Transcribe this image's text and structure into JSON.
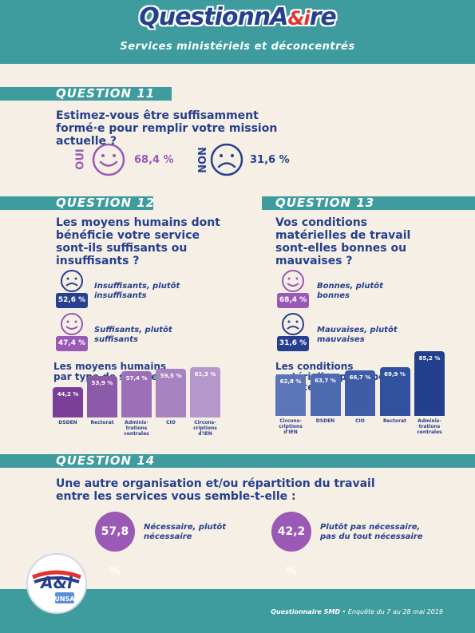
{
  "header": {
    "brand_main": "QuestionnA",
    "brand_amp": "&i",
    "brand_end": "re",
    "subtitle": "Services ministériels et déconcentrés"
  },
  "q11": {
    "label": "QUESTION 11",
    "title": "Estimez-vous être suffisamment formé·e pour remplir votre mission actuelle ?",
    "oui_label": "OUI",
    "oui_pct": "68,4 %",
    "non_label": "NON",
    "non_pct": "31,6 %"
  },
  "q12": {
    "label": "QUESTION 12",
    "title": "Les moyens humains dont bénéficie votre service sont-ils suffisants ou insuffisants ?",
    "a1_pct": "52,6 %",
    "a1_text": "Insuffisants, plutôt insuffisants",
    "a2_pct": "47,4 %",
    "a2_text": "Suffisants, plutôt suffisants",
    "sub_title": "Les moyens humains par type de service"
  },
  "q13": {
    "label": "QUESTION 13",
    "title": "Vos conditions matérielles de travail sont-elles bonnes ou mauvaises ?",
    "a1_pct": "68,4 %",
    "a1_text": "Bonnes, plutôt bonnes",
    "a2_pct": "31,6 %",
    "a2_text": "Mauvaises, plutôt mauvaises",
    "sub_title": "Les conditions matérielles par type de service"
  },
  "q14": {
    "label": "QUESTION 14",
    "title": "Une autre organisation et/ou répartition du travail entre les services vous semble-t-elle :",
    "a1_pct": "57,8 %",
    "a1_text": "Nécessaire, plutôt nécessaire",
    "a2_pct": "42,2 %",
    "a2_text": "Plutôt pas nécessaire, pas du tout nécessaire"
  },
  "footer": {
    "text_bold": "Questionnaire SMD",
    "text_rest": " • Enquête du 7 au 28 mai 2019",
    "logo_text": "A&i",
    "logo_sub": "UNSA"
  },
  "chart_data": [
    {
      "type": "bar",
      "categories": [
        "DSDEN",
        "Rectorat",
        "Adminis-trations centrales",
        "CIO",
        "Circons-criptions d'IEN"
      ],
      "values": [
        44.2,
        53.9,
        57.4,
        59.5,
        61.3
      ],
      "labels": [
        "44,2 %",
        "53,9 %",
        "57,4 %",
        "59,5 %",
        "61,3 %"
      ],
      "title": "Les moyens humains par type de service",
      "colors": [
        "#7b3f98",
        "#8b5aa8",
        "#9b70b6",
        "#a883c1",
        "#b597cc"
      ]
    },
    {
      "type": "bar",
      "categories": [
        "Circons-criptions d'IEN",
        "DSDEN",
        "CIO",
        "Rectorat",
        "Adminis-trations centrales"
      ],
      "values": [
        62.8,
        63.7,
        66.7,
        69.9,
        85.2
      ],
      "labels": [
        "62,8 %",
        "63,7 %",
        "66,7 %",
        "69,9 %",
        "85,2 %"
      ],
      "title": "Les conditions matérielles par type de service",
      "colors": [
        "#5b76b8",
        "#4d69b0",
        "#3f5ca7",
        "#31509e",
        "#243f8e"
      ]
    }
  ]
}
